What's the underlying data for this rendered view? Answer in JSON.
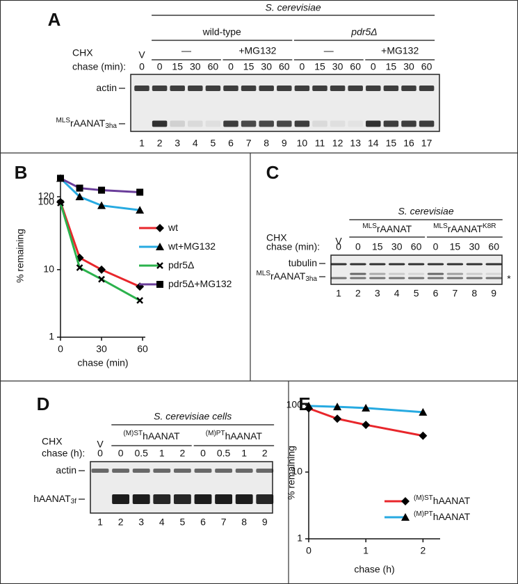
{
  "panel_a": {
    "letter": "A",
    "organism": "S. cerevisiae",
    "strains": [
      "wild-type",
      "pdr5Δ"
    ],
    "treatments": [
      "—",
      "+MG132",
      "—",
      "+MG132"
    ],
    "row_labels": [
      "CHX",
      "chase (min):"
    ],
    "vector": "V",
    "chase": [
      0,
      0,
      15,
      30,
      60,
      0,
      15,
      30,
      60,
      0,
      15,
      30,
      60,
      0,
      15,
      30,
      60
    ],
    "lanes": [
      1,
      2,
      3,
      4,
      5,
      6,
      7,
      8,
      9,
      10,
      11,
      12,
      13,
      14,
      15,
      16,
      17
    ],
    "bands": [
      {
        "label": "actin"
      },
      {
        "sup": "MLS",
        "label": "rAANAT",
        "sub": "3ha"
      }
    ]
  },
  "panel_b": {
    "letter": "B",
    "chart_data": {
      "type": "line",
      "y_label": "% remaining",
      "x_label": "chase (min)",
      "log_y": true,
      "x": [
        0,
        14,
        30,
        58
      ],
      "xlim": [
        0,
        62
      ],
      "xticks": [
        0,
        30,
        60
      ],
      "ylim": [
        1,
        250
      ],
      "yticks": [
        1,
        10,
        100,
        120
      ],
      "series": [
        {
          "name": "wt",
          "color": "#e8262b",
          "marker": "diamond",
          "values": [
            100,
            15,
            10,
            5.6
          ]
        },
        {
          "name": "wt+MG132",
          "color": "#27aae1",
          "marker": "triangle",
          "values": [
            225,
            120,
            89,
            76
          ]
        },
        {
          "name": "pdr5Δ",
          "color": "#2bb24c",
          "marker": "x",
          "values": [
            97,
            10.7,
            7.2,
            3.5
          ]
        },
        {
          "name": "pdr5Δ+MG132",
          "color": "#6a3d9a",
          "marker": "square",
          "values": [
            225,
            161,
            150,
            140
          ]
        }
      ]
    }
  },
  "panel_c": {
    "letter": "C",
    "organism": "S. cerevisiae",
    "groups": [
      {
        "sup": "MLS",
        "label": "rAANAT"
      },
      {
        "sup": "MLS",
        "label": "rAANAT",
        "sup2": "K8R"
      }
    ],
    "row_labels": [
      "CHX",
      "chase (min):"
    ],
    "vector": "V",
    "chase": [
      0,
      0,
      15,
      30,
      60,
      0,
      15,
      30,
      60
    ],
    "lanes": [
      1,
      2,
      3,
      4,
      5,
      6,
      7,
      8,
      9
    ],
    "bands": [
      {
        "label": "tubulin"
      },
      {
        "sup": "MLS",
        "label": "rAANAT",
        "sub": "3ha"
      }
    ],
    "asterisk": "*"
  },
  "panel_d": {
    "letter": "D",
    "organism": "S. cerevisiae cells",
    "groups": [
      {
        "sup": "(M)ST",
        "label": "hAANAT"
      },
      {
        "sup": "(M)PT",
        "label": "hAANAT"
      }
    ],
    "row_labels": [
      "CHX",
      "chase (h):"
    ],
    "vector": "V",
    "chase": [
      0,
      0,
      0.5,
      1,
      2,
      0,
      0.5,
      1,
      2
    ],
    "lanes": [
      1,
      2,
      3,
      4,
      5,
      6,
      7,
      8,
      9
    ],
    "bands": [
      {
        "label": "actin"
      },
      {
        "label": "hAANAT",
        "sub": "3f"
      }
    ]
  },
  "panel_e": {
    "letter": "E",
    "chart_data": {
      "type": "line",
      "y_label": "% remaining",
      "x_label": "chase (h)",
      "log_y": true,
      "x": [
        0,
        0.5,
        1,
        2
      ],
      "xlim": [
        0,
        2.3
      ],
      "xticks": [
        0,
        1,
        2
      ],
      "ylim": [
        1,
        100
      ],
      "yticks": [
        1,
        10,
        100
      ],
      "series": [
        {
          "name_sup": "(M)ST",
          "name": "hAANAT",
          "color": "#e8262b",
          "marker": "diamond",
          "values": [
            90,
            63,
            51,
            35
          ]
        },
        {
          "name_sup": "(M)PT",
          "name": "hAANAT",
          "color": "#27aae1",
          "marker": "triangle",
          "values": [
            98,
            95,
            91,
            79
          ]
        }
      ]
    }
  }
}
